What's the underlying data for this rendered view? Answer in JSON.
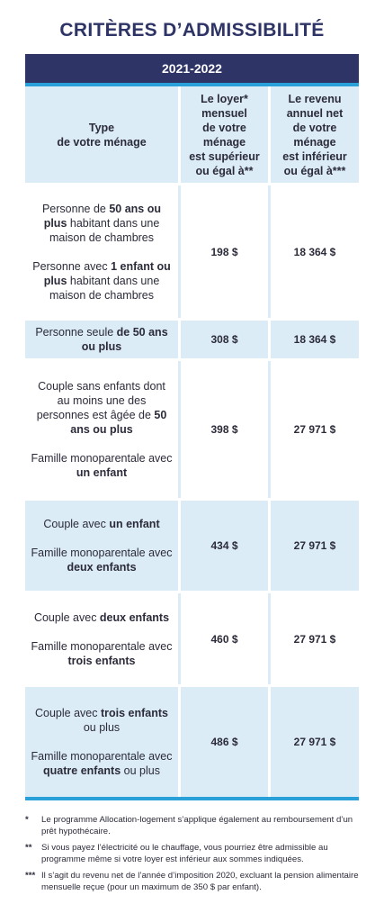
{
  "title": "CRITÈRES D’ADMISSIBILITÉ",
  "year": "2021-2022",
  "headers": {
    "type": [
      "Type",
      "de votre ménage"
    ],
    "loyer": [
      "Le loyer*",
      "mensuel",
      "de votre",
      "ménage",
      "est supérieur",
      "ou égal à**"
    ],
    "revenu": [
      "Le revenu",
      "annuel net",
      "de votre",
      "ménage",
      "est inférieur",
      "ou égal à***"
    ]
  },
  "rows": [
    {
      "type_a": [
        {
          "t": "Personne de ",
          "b": false
        },
        {
          "t": "50 ans",
          "b": true
        },
        {
          "t": " ",
          "b": false
        },
        {
          "t": "ou plus",
          "b": true
        },
        {
          "t": " habitant dans une maison de chambres",
          "b": false
        }
      ],
      "type_b": [
        {
          "t": "Personne avec ",
          "b": false
        },
        {
          "t": "1 enfant ou plus",
          "b": true
        },
        {
          "t": " habitant dans une maison de chambres",
          "b": false
        }
      ],
      "loyer": "198 $",
      "revenu": "18 364 $"
    },
    {
      "type_a": [
        {
          "t": "Personne seule ",
          "b": false
        },
        {
          "t": "de 50 ans ou plus",
          "b": true
        }
      ],
      "type_b": [],
      "loyer": "308 $",
      "revenu": "18 364 $"
    },
    {
      "type_a": [
        {
          "t": "Couple sans enfants dont au moins une des personnes est âgée de ",
          "b": false
        },
        {
          "t": "50 ans",
          "b": true
        },
        {
          "t": " ",
          "b": false
        },
        {
          "t": "ou plus",
          "b": true
        }
      ],
      "type_b": [
        {
          "t": "Famille monoparentale avec ",
          "b": false
        },
        {
          "t": "un enfant",
          "b": true
        }
      ],
      "loyer": "398 $",
      "revenu": "27 971 $"
    },
    {
      "type_a": [
        {
          "t": "Couple avec ",
          "b": false
        },
        {
          "t": "un enfant",
          "b": true
        }
      ],
      "type_b": [
        {
          "t": "Famille monoparentale avec ",
          "b": false
        },
        {
          "t": "deux enfants",
          "b": true
        }
      ],
      "loyer": "434 $",
      "revenu": "27 971 $"
    },
    {
      "type_a": [
        {
          "t": "Couple avec ",
          "b": false
        },
        {
          "t": "deux enfants",
          "b": true
        }
      ],
      "type_b": [
        {
          "t": "Famille monoparentale avec ",
          "b": false
        },
        {
          "t": "trois enfants",
          "b": true
        }
      ],
      "loyer": "460 $",
      "revenu": "27 971 $"
    },
    {
      "type_a": [
        {
          "t": "Couple avec ",
          "b": false
        },
        {
          "t": "trois enfants",
          "b": true
        },
        {
          "t": " ou plus",
          "b": false
        }
      ],
      "type_b": [
        {
          "t": "Famille monoparentale avec ",
          "b": false
        },
        {
          "t": "quatre enfants",
          "b": true
        },
        {
          "t": " ou plus",
          "b": false
        }
      ],
      "loyer": "486 $",
      "revenu": "27 971 $"
    }
  ],
  "notes": [
    {
      "mark": "*",
      "text": "Le programme Allocation-logement s’applique également au remboursement d’un prêt hypothécaire."
    },
    {
      "mark": "**",
      "text": "Si vous payez l’électricité ou le chauffage, vous pourriez être admissible au programme même si votre loyer est inférieur aux sommes indiquées."
    },
    {
      "mark": "***",
      "text": "Il s’agit du revenu net de l’année d’imposition 2020, excluant la pension alimentaire mensuelle reçue (pour un maximum de 350 $ par enfant)."
    }
  ]
}
